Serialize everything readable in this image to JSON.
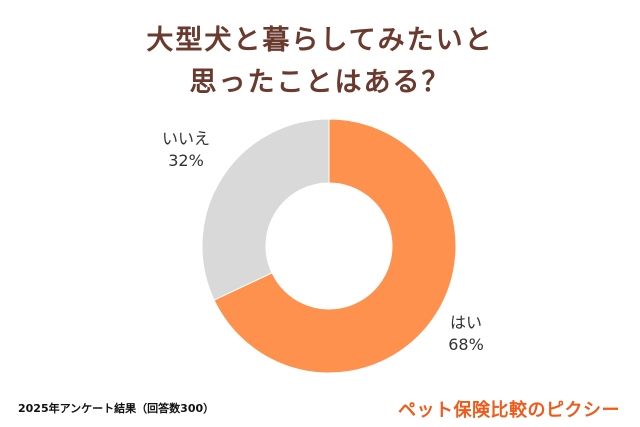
{
  "title": {
    "line1": "大型犬と暮らしてみたいと",
    "line2": "思ったことはある？",
    "color": "#6b3a2e"
  },
  "chart_data": {
    "type": "pie",
    "variant": "donut",
    "title": "大型犬と暮らしてみたいと思ったことはある？",
    "categories": [
      "はい",
      "いいえ"
    ],
    "values": [
      68,
      32
    ],
    "unit": "%",
    "colors": [
      "#fe914d",
      "#d9d9d9"
    ],
    "labels": [
      {
        "name": "はい",
        "value": "68%"
      },
      {
        "name": "いいえ",
        "value": "32%"
      }
    ],
    "start_angle_deg": 0,
    "direction": "clockwise",
    "legend": "none (inline labels)"
  },
  "labels": {
    "yes": {
      "name": "はい",
      "value": "68%"
    },
    "no": {
      "name": "いいえ",
      "value": "32%"
    }
  },
  "footnote": "2025年アンケート結果（回答数300）",
  "brand": {
    "text": "ペット保険比較のピクシー",
    "color": "#f05a1a"
  }
}
